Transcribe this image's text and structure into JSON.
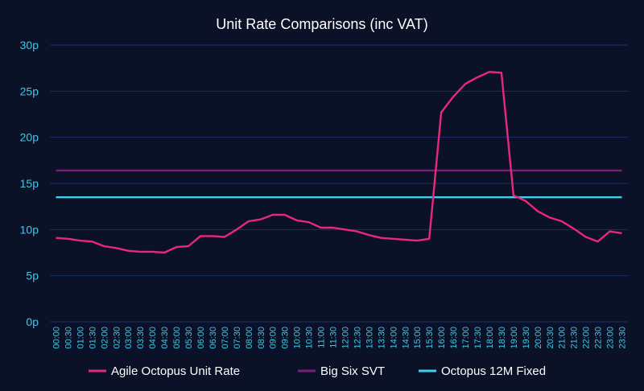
{
  "chart_data": {
    "type": "line",
    "title": "Unit Rate Comparisons (inc VAT)",
    "xlabel": "",
    "ylabel": "",
    "ylim": [
      0,
      30
    ],
    "yticks": [
      "0p",
      "5p",
      "10p",
      "15p",
      "20p",
      "25p",
      "30p"
    ],
    "ytick_values": [
      0,
      5,
      10,
      15,
      20,
      25,
      30
    ],
    "grid": true,
    "legend_position": "bottom",
    "categories": [
      "00:00",
      "00:30",
      "01:00",
      "01:30",
      "02:00",
      "02:30",
      "03:00",
      "03:30",
      "04:00",
      "04:30",
      "05:00",
      "05:30",
      "06:00",
      "06:30",
      "07:00",
      "07:30",
      "08:00",
      "08:30",
      "09:00",
      "09:30",
      "10:00",
      "10:30",
      "11:00",
      "11:30",
      "12:00",
      "12:30",
      "13:00",
      "13:30",
      "14:00",
      "14:30",
      "15:00",
      "15:30",
      "16:00",
      "16:30",
      "17:00",
      "17:30",
      "18:00",
      "18:30",
      "19:00",
      "19:30",
      "20:00",
      "20:30",
      "21:00",
      "21:30",
      "22:00",
      "22:30",
      "23:00",
      "23:30"
    ],
    "series": [
      {
        "name": "Agile Octopus Unit Rate",
        "color": "#e8287a",
        "values": [
          9.1,
          9.0,
          8.8,
          8.7,
          8.2,
          8.0,
          7.7,
          7.6,
          7.6,
          7.5,
          8.1,
          8.2,
          9.3,
          9.3,
          9.2,
          10.0,
          10.9,
          11.1,
          11.6,
          11.6,
          11.0,
          10.8,
          10.2,
          10.2,
          10.0,
          9.8,
          9.4,
          9.1,
          9.0,
          8.9,
          8.8,
          9.0,
          22.7,
          24.4,
          25.8,
          26.5,
          27.1,
          27.0,
          13.7,
          13.1,
          12.0,
          11.3,
          10.9,
          10.1,
          9.2,
          8.7,
          9.8,
          9.6
        ]
      },
      {
        "name": "Big Six SVT",
        "color": "#7a1f78",
        "values": [
          16.4,
          16.4,
          16.4,
          16.4,
          16.4,
          16.4,
          16.4,
          16.4,
          16.4,
          16.4,
          16.4,
          16.4,
          16.4,
          16.4,
          16.4,
          16.4,
          16.4,
          16.4,
          16.4,
          16.4,
          16.4,
          16.4,
          16.4,
          16.4,
          16.4,
          16.4,
          16.4,
          16.4,
          16.4,
          16.4,
          16.4,
          16.4,
          16.4,
          16.4,
          16.4,
          16.4,
          16.4,
          16.4,
          16.4,
          16.4,
          16.4,
          16.4,
          16.4,
          16.4,
          16.4,
          16.4,
          16.4,
          16.4
        ]
      },
      {
        "name": "Octopus 12M Fixed",
        "color": "#3fd0ee",
        "values": [
          13.5,
          13.5,
          13.5,
          13.5,
          13.5,
          13.5,
          13.5,
          13.5,
          13.5,
          13.5,
          13.5,
          13.5,
          13.5,
          13.5,
          13.5,
          13.5,
          13.5,
          13.5,
          13.5,
          13.5,
          13.5,
          13.5,
          13.5,
          13.5,
          13.5,
          13.5,
          13.5,
          13.5,
          13.5,
          13.5,
          13.5,
          13.5,
          13.5,
          13.5,
          13.5,
          13.5,
          13.5,
          13.5,
          13.5,
          13.5,
          13.5,
          13.5,
          13.5,
          13.5,
          13.5,
          13.5,
          13.5,
          13.5
        ]
      }
    ]
  },
  "colors": {
    "background": "#0b1126",
    "gridline": "#1a2f6e",
    "tick_text": "#41c8e6",
    "title_text": "#ffffff"
  }
}
